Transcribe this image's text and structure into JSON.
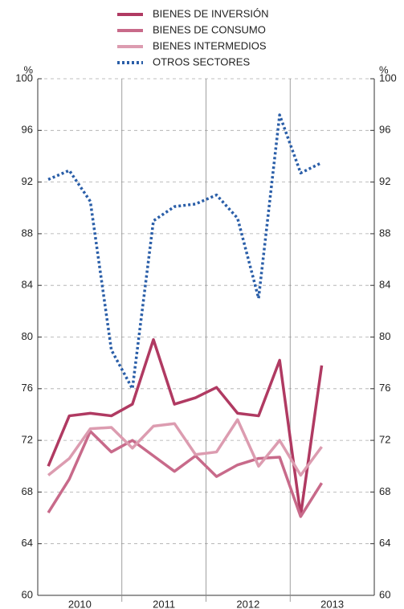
{
  "chart_data": {
    "type": "line",
    "y_unit": "%",
    "x": [
      2010.125,
      2010.375,
      2010.625,
      2010.875,
      2011.125,
      2011.375,
      2011.625,
      2011.875,
      2012.125,
      2012.375,
      2012.625,
      2012.875,
      2013.125,
      2013.375
    ],
    "xlim": [
      2010,
      2014
    ],
    "xticks": [
      {
        "value": 2010.5,
        "label": "2010"
      },
      {
        "value": 2011.5,
        "label": "2011"
      },
      {
        "value": 2012.5,
        "label": "2012"
      },
      {
        "value": 2013.5,
        "label": "2013"
      }
    ],
    "ylim": [
      60,
      100
    ],
    "yticks": [
      60,
      64,
      68,
      72,
      76,
      80,
      84,
      88,
      92,
      96,
      100
    ],
    "grid": true,
    "series": [
      {
        "name": "BIENES DE INVERSIÓN",
        "color": "#b03a62",
        "style": "solid",
        "values": [
          70,
          73.9,
          74.1,
          73.9,
          74.8,
          79.8,
          74.8,
          75.3,
          76.1,
          74.1,
          73.9,
          78.2,
          66.2,
          77.8
        ]
      },
      {
        "name": "BIENES DE CONSUMO",
        "color": "#c86a8a",
        "style": "solid",
        "values": [
          66.4,
          69,
          72.7,
          71.1,
          72,
          70.8,
          69.6,
          70.8,
          69.2,
          70.1,
          70.6,
          70.7,
          66.1,
          68.7
        ]
      },
      {
        "name": "BIENES INTERMEDIOS",
        "color": "#dc9cb0",
        "style": "solid",
        "values": [
          69.3,
          70.6,
          72.9,
          73,
          71.4,
          73.1,
          73.3,
          70.9,
          71.1,
          73.6,
          70,
          72,
          69.3,
          71.5
        ]
      },
      {
        "name": "OTROS SECTORES",
        "color": "#2a5ea8",
        "style": "dotted",
        "values": [
          92.2,
          92.9,
          90.5,
          79,
          76,
          89,
          90.1,
          90.3,
          91,
          89.2,
          83,
          97.2,
          92.7,
          93.5
        ]
      }
    ]
  }
}
